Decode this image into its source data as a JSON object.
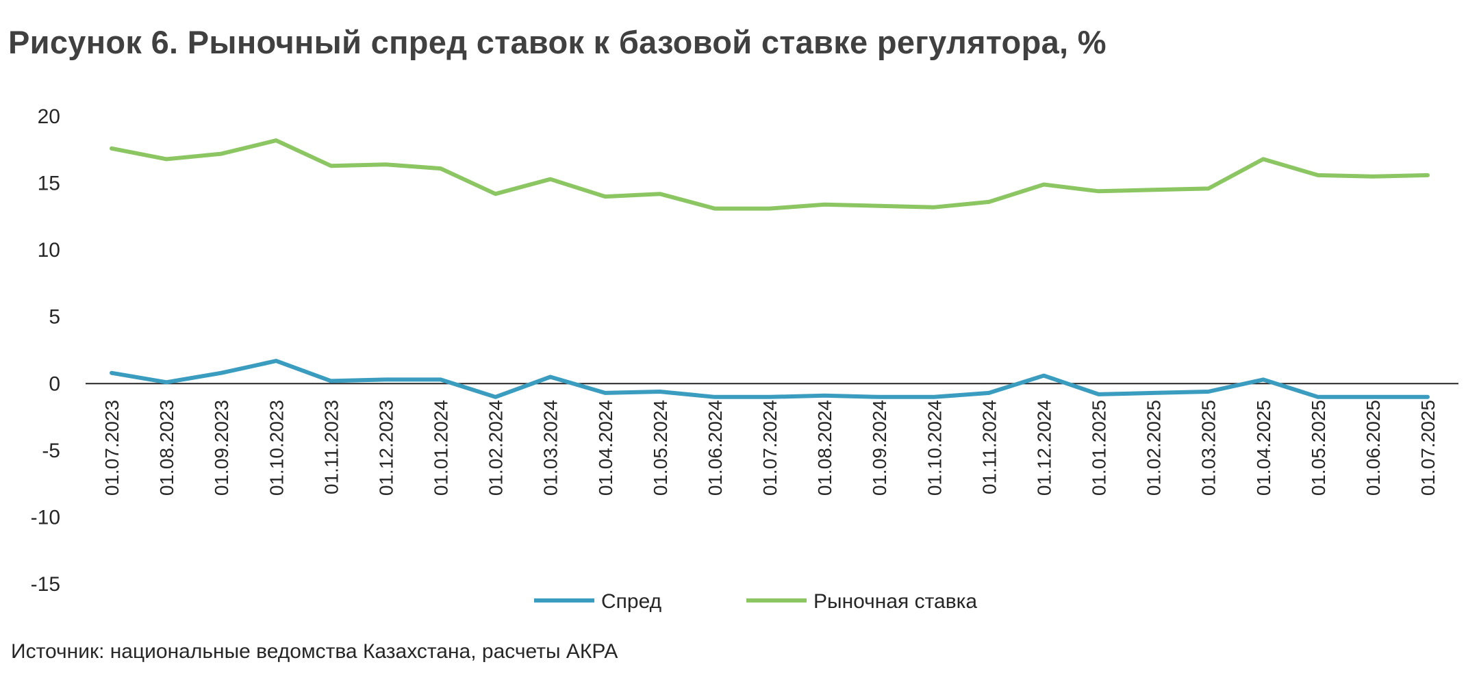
{
  "title": "Рисунок 6. Рыночный спред ставок к базовой ставке регулятора, %",
  "source": "Источник: национальные ведомства Казахстана, расчеты АКРА",
  "chart_data": {
    "type": "line",
    "categories": [
      "01.07.2023",
      "01.08.2023",
      "01.09.2023",
      "01.10.2023",
      "01.11.2023",
      "01.12.2023",
      "01.01.2024",
      "01.02.2024",
      "01.03.2024",
      "01.04.2024",
      "01.05.2024",
      "01.06.2024",
      "01.07.2024",
      "01.08.2024",
      "01.09.2024",
      "01.10.2024",
      "01.11.2024",
      "01.12.2024",
      "01.01.2025",
      "01.02.2025",
      "01.03.2025",
      "01.04.2025",
      "01.05.2025",
      "01.06.2025",
      "01.07.2025"
    ],
    "series": [
      {
        "name": "Спред",
        "color": "#3a9cbf",
        "values": [
          0.8,
          0.1,
          0.8,
          1.7,
          0.2,
          0.3,
          0.3,
          -1.0,
          0.5,
          -0.7,
          -0.6,
          -1.0,
          -1.0,
          -0.9,
          -1.0,
          -1.0,
          -0.7,
          0.6,
          -0.8,
          -0.7,
          -0.6,
          0.3,
          -1.0,
          -1.0,
          -1.0
        ]
      },
      {
        "name": "Рыночная ставка",
        "color": "#8cc663",
        "values": [
          17.6,
          16.8,
          17.2,
          18.2,
          16.3,
          16.4,
          16.1,
          14.2,
          15.3,
          14.0,
          14.2,
          13.1,
          13.1,
          13.4,
          13.3,
          13.2,
          13.6,
          14.9,
          14.4,
          14.5,
          14.6,
          16.8,
          15.6,
          15.5,
          15.6
        ]
      }
    ],
    "yticks": [
      20,
      15,
      10,
      5,
      0,
      -5,
      -10,
      -15
    ],
    "ylim": [
      -15,
      20
    ],
    "legend_position": "bottom",
    "grid": false
  }
}
